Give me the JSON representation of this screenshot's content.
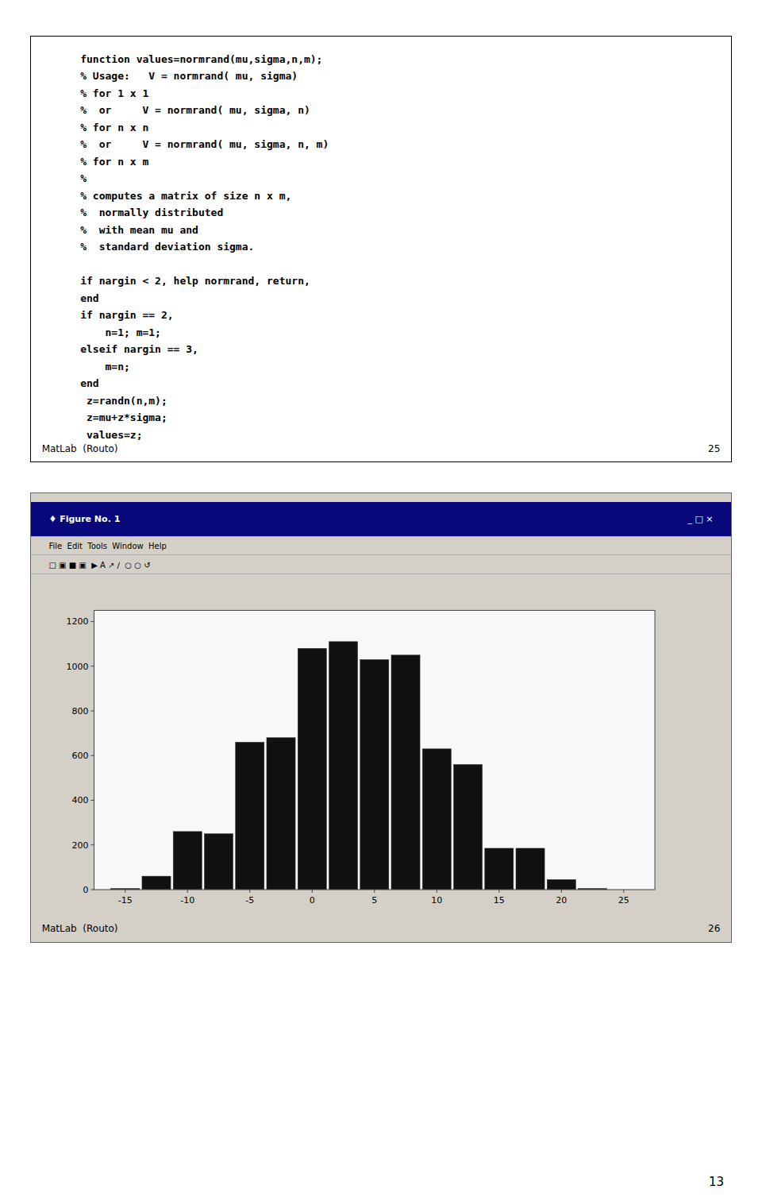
{
  "chart_data": {
    "type": "bar",
    "title": "♦ Figure No. 1",
    "x": [
      -15,
      -12.5,
      -10,
      -7.5,
      -5,
      -2.5,
      0,
      2.5,
      5,
      7.5,
      10,
      12.5,
      15,
      17.5,
      20,
      22.5
    ],
    "values": [
      5,
      60,
      260,
      250,
      660,
      680,
      1080,
      1110,
      1030,
      1050,
      630,
      560,
      185,
      185,
      45,
      5
    ],
    "color": "#111111",
    "xlim": [
      -17.5,
      27.5
    ],
    "xticks": [
      -15,
      -10,
      -5,
      0,
      5,
      10,
      15,
      20,
      25
    ],
    "ylim": [
      0,
      1250
    ],
    "yticks": [
      0,
      200,
      400,
      600,
      800,
      1000,
      1200
    ],
    "grid": false,
    "annotations": [
      "function values=normrand(mu,sigma,n,m);\n% Usage:   V = normrand( mu, sigma)\n% for 1 x 1\n%  or     V = normrand( mu, sigma, n)\n% for n x n\n%  or     V = normrand( mu, sigma, n, m)\n% for n x m\n%\n% computes a matrix of size n x m,\n%  normally distributed\n%  with mean mu and\n%  standard deviation sigma.\n\nif nargin < 2, help normrand, return,\nend\nif nargin == 2,\n    n=1; m=1;\nelseif nargin == 3,\n    m=n;\nend\n z=randn(n,m);\n z=mu+z*sigma;\n values=z;",
      "MatLab  (Routo)",
      "25",
      "MatLab  (Routo)",
      "26",
      "13",
      "File  Edit  Tools  Window  Help",
      "_ □ ×",
      "□ ▣ ■ ▣  ▶ A ↗ ∕  ○ ○ ↺"
    ]
  }
}
